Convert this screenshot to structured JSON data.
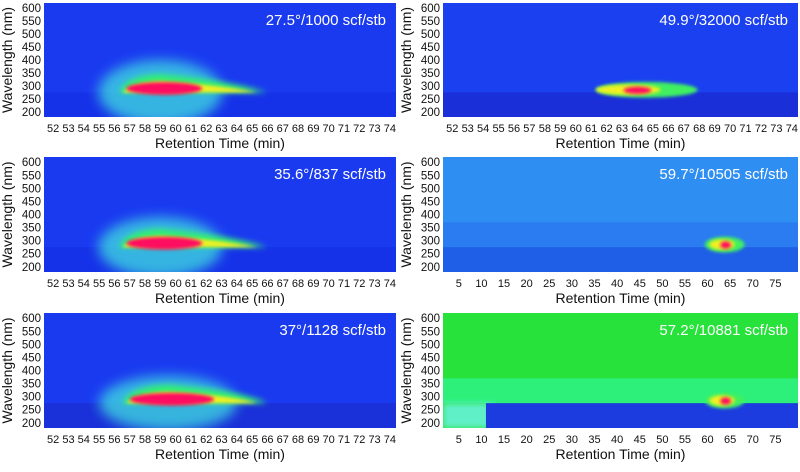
{
  "chart_data": [
    {
      "type": "heatmap",
      "annotation": "27.5°/1000 scf/stb",
      "xlabel": "Retention Time (min)",
      "ylabel": "Wavelength (nm)",
      "xlim": [
        51.4,
        74.4
      ],
      "ylim": [
        180,
        620
      ],
      "xticks": [
        52,
        53,
        54,
        55,
        56,
        57,
        58,
        59,
        60,
        61,
        62,
        63,
        64,
        65,
        66,
        67,
        68,
        69,
        70,
        71,
        72,
        73,
        74
      ],
      "yticks": [
        200,
        250,
        300,
        350,
        400,
        450,
        500,
        550,
        600
      ],
      "background": "#1a3af0",
      "low_band_color": "#1632e8",
      "peaks": [
        {
          "rt": 59,
          "wl": 295,
          "intensity": 1.0,
          "rt_width": 4.5,
          "tail_to": 66,
          "top_wl": 400
        }
      ]
    },
    {
      "type": "heatmap",
      "annotation": "49.9°/32000 scf/stb",
      "xlabel": "Retention Time (min)",
      "ylabel": "Wavelength (nm)",
      "xlim": [
        51.4,
        74.4
      ],
      "ylim": [
        180,
        620
      ],
      "xticks": [
        52,
        53,
        54,
        55,
        56,
        57,
        58,
        59,
        60,
        61,
        62,
        63,
        64,
        65,
        66,
        67,
        68,
        69,
        70,
        71,
        72,
        73,
        74
      ],
      "yticks": [
        200,
        250,
        300,
        350,
        400,
        450,
        500,
        550,
        600
      ],
      "background": "#1a40f0",
      "low_band_color": "#1a2fd8",
      "peaks": [
        {
          "rt": 64,
          "wl": 285,
          "intensity": 0.9,
          "rt_width": 3,
          "tail_to": 67,
          "top_wl": 310
        }
      ]
    },
    {
      "type": "heatmap",
      "annotation": "35.6°/837 scf/stb",
      "xlabel": "Retention Time (min)",
      "ylabel": "Wavelength (nm)",
      "xlim": [
        51.4,
        74.4
      ],
      "ylim": [
        180,
        620
      ],
      "xticks": [
        52,
        53,
        54,
        55,
        56,
        57,
        58,
        59,
        60,
        61,
        62,
        63,
        64,
        65,
        66,
        67,
        68,
        69,
        70,
        71,
        72,
        73,
        74
      ],
      "yticks": [
        200,
        250,
        300,
        350,
        400,
        450,
        500,
        550,
        600
      ],
      "background": "#1a3af0",
      "low_band_color": "#1632e8",
      "peaks": [
        {
          "rt": 59,
          "wl": 295,
          "intensity": 1.0,
          "rt_width": 4.5,
          "tail_to": 66,
          "top_wl": 390
        }
      ]
    },
    {
      "type": "heatmap",
      "annotation": "59.7°/10505 scf/stb",
      "xlabel": "Retention Time (min)",
      "ylabel": "Wavelength (nm)",
      "xlim": [
        1.5,
        80
      ],
      "ylim": [
        180,
        620
      ],
      "xticks": [
        5,
        10,
        15,
        20,
        25,
        30,
        35,
        40,
        45,
        50,
        55,
        60,
        65,
        70,
        75
      ],
      "yticks": [
        200,
        250,
        300,
        350,
        400,
        450,
        500,
        550,
        600
      ],
      "background": "#2e8ef2",
      "mid_band_color": "#2a7cf0",
      "low_band_color": "#1f5ee6",
      "peaks": [
        {
          "rt": 64,
          "wl": 285,
          "intensity": 0.9,
          "rt_width": 4,
          "tail_to": 66,
          "top_wl": 305
        }
      ]
    },
    {
      "type": "heatmap",
      "annotation": "37°/1128 scf/stb",
      "xlabel": "Retention Time (min)",
      "ylabel": "Wavelength (nm)",
      "xlim": [
        51.4,
        74.4
      ],
      "ylim": [
        180,
        620
      ],
      "xticks": [
        52,
        53,
        54,
        55,
        56,
        57,
        58,
        59,
        60,
        61,
        62,
        63,
        64,
        65,
        66,
        67,
        68,
        69,
        70,
        71,
        72,
        73,
        74
      ],
      "yticks": [
        200,
        250,
        300,
        350,
        400,
        450,
        500,
        550,
        600
      ],
      "background": "#1a3af0",
      "low_band_color": "#1a30d8",
      "peaks": [
        {
          "rt": 59.5,
          "wl": 290,
          "intensity": 0.95,
          "rt_width": 5,
          "tail_to": 66,
          "top_wl": 380
        }
      ]
    },
    {
      "type": "heatmap",
      "annotation": "57.2°/10881 scf/stb",
      "xlabel": "Retention Time (min)",
      "ylabel": "Wavelength (nm)",
      "xlim": [
        1.5,
        80
      ],
      "ylim": [
        180,
        620
      ],
      "xticks": [
        5,
        10,
        15,
        20,
        25,
        30,
        35,
        40,
        45,
        50,
        55,
        60,
        65,
        70,
        75
      ],
      "yticks": [
        200,
        250,
        300,
        350,
        400,
        450,
        500,
        550,
        600
      ],
      "background": "#26e23a",
      "mid_band_color": "#2cf07a",
      "low_band_color": "#1c3ce0",
      "peaks": [
        {
          "rt": 64,
          "wl": 285,
          "intensity": 0.9,
          "rt_width": 4,
          "tail_to": 66,
          "top_wl": 305
        }
      ]
    }
  ]
}
